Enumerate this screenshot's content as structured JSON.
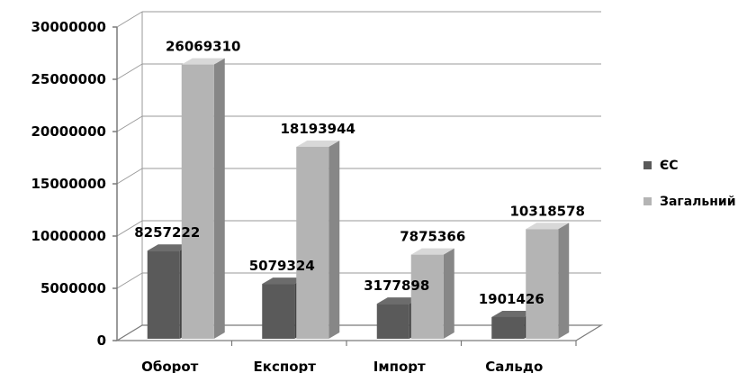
{
  "chart_data": {
    "type": "bar",
    "categories": [
      "Оборот",
      "Експорт",
      "Імпорт",
      "Сальдо"
    ],
    "series": [
      {
        "name": "ЄС",
        "values": [
          8257222,
          5079324,
          3177898,
          1901426
        ],
        "color": "#5a5a5a"
      },
      {
        "name": "Загальний",
        "values": [
          26069310,
          18193944,
          7875366,
          10318578
        ],
        "color": "#b4b4b4"
      }
    ],
    "data_labels": [
      [
        "8257222",
        "5079324",
        "3177898",
        "1901426"
      ],
      [
        "26069310",
        "18193944",
        "7875366",
        "10318578"
      ]
    ],
    "yticks": [
      "0",
      "5000000",
      "10000000",
      "15000000",
      "20000000",
      "25000000",
      "30000000"
    ],
    "ylim": [
      0,
      30000000
    ],
    "grid": true,
    "three_d": true,
    "legend": "right"
  }
}
